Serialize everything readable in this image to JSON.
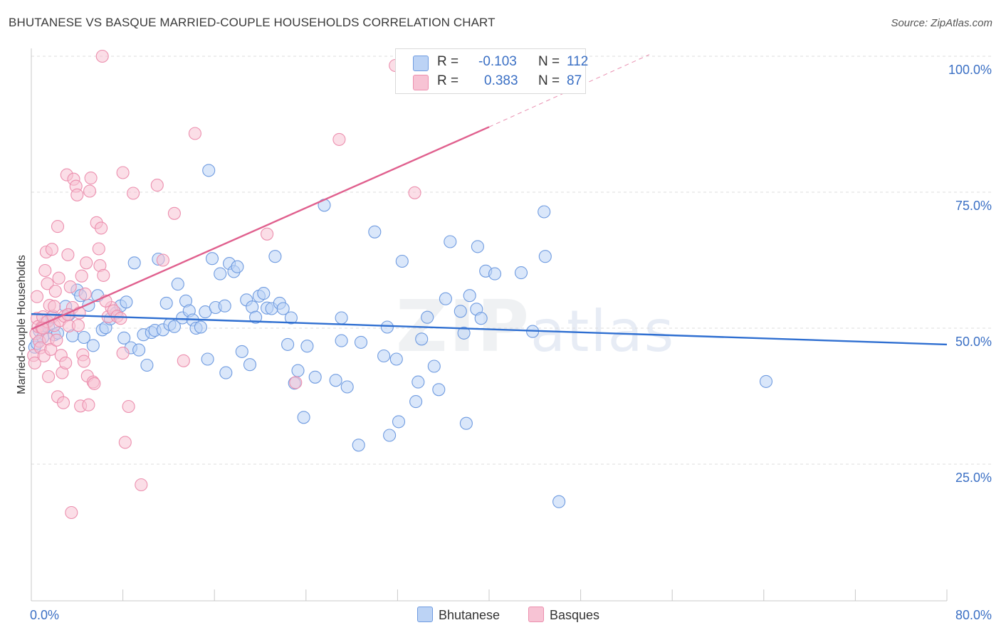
{
  "title": "BHUTANESE VS BASQUE MARRIED-COUPLE HOUSEHOLDS CORRELATION CHART",
  "source": "Source: ZipAtlas.com",
  "watermark": {
    "zip": "ZIP",
    "atlas": "atlas"
  },
  "legend": {
    "rows": [
      {
        "r_label": "R =",
        "r_value": "-0.103",
        "n_label": "N =",
        "n_value": "112"
      },
      {
        "r_label": "R =",
        "r_value": "0.383",
        "n_label": "N =",
        "n_value": "87"
      }
    ]
  },
  "bottom_legend": [
    "Bhutanese",
    "Basques"
  ],
  "colors": {
    "blue_fill": "#bcd3f5",
    "blue_stroke": "#6f9be0",
    "blue_line": "#2f6fd1",
    "pink_fill": "#f7c3d4",
    "pink_stroke": "#ec8fae",
    "pink_line": "#e0608e",
    "grid": "#dcdcdc",
    "tick_text": "#3a6fc4"
  },
  "chart_data": {
    "type": "scatter",
    "title": "BHUTANESE VS BASQUE MARRIED-COUPLE HOUSEHOLDS CORRELATION CHART",
    "xlabel": "",
    "ylabel": "Married-couple Households",
    "xlim": [
      0,
      80
    ],
    "ylim": [
      0,
      105
    ],
    "x_tick_labels": [
      "0.0%",
      "80.0%"
    ],
    "y_ticks": [
      25,
      50,
      75,
      100
    ],
    "y_tick_labels": [
      "25.0%",
      "50.0%",
      "75.0%",
      "100.0%"
    ],
    "grid": true,
    "legend_position": "top-center",
    "series": [
      {
        "name": "Bhutanese",
        "r": -0.103,
        "n": 112,
        "trend": {
          "x": [
            0,
            80
          ],
          "y": [
            52.6,
            47.0
          ]
        },
        "points": [
          [
            0.3,
            46.5
          ],
          [
            0.5,
            47.2
          ],
          [
            0.7,
            49.5
          ],
          [
            1.0,
            48.3
          ],
          [
            1.2,
            51.0
          ],
          [
            1.5,
            50.2
          ],
          [
            1.8,
            52.0
          ],
          [
            2.0,
            48.8
          ],
          [
            2.3,
            49.1
          ],
          [
            3.0,
            54.0
          ],
          [
            3.3,
            52.5
          ],
          [
            3.6,
            48.6
          ],
          [
            4.0,
            57.0
          ],
          [
            4.3,
            56.0
          ],
          [
            4.6,
            48.3
          ],
          [
            5.0,
            54.2
          ],
          [
            5.4,
            46.8
          ],
          [
            5.8,
            56.0
          ],
          [
            6.2,
            49.7
          ],
          [
            6.5,
            50.1
          ],
          [
            6.9,
            51.7
          ],
          [
            7.4,
            52.8
          ],
          [
            7.8,
            54.1
          ],
          [
            8.1,
            48.2
          ],
          [
            8.3,
            54.8
          ],
          [
            8.7,
            46.4
          ],
          [
            9.0,
            62.0
          ],
          [
            9.4,
            46.0
          ],
          [
            9.8,
            48.8
          ],
          [
            10.1,
            43.2
          ],
          [
            10.5,
            49.2
          ],
          [
            10.8,
            49.6
          ],
          [
            11.1,
            62.7
          ],
          [
            11.5,
            49.7
          ],
          [
            11.8,
            54.6
          ],
          [
            12.1,
            50.7
          ],
          [
            12.5,
            50.3
          ],
          [
            12.8,
            58.1
          ],
          [
            13.2,
            51.9
          ],
          [
            13.5,
            55.0
          ],
          [
            13.8,
            53.2
          ],
          [
            14.1,
            51.5
          ],
          [
            14.4,
            50.0
          ],
          [
            14.8,
            50.2
          ],
          [
            15.2,
            53.0
          ],
          [
            15.4,
            44.3
          ],
          [
            15.5,
            79.0
          ],
          [
            15.8,
            62.8
          ],
          [
            16.1,
            53.8
          ],
          [
            16.5,
            60.0
          ],
          [
            16.9,
            54.1
          ],
          [
            17.0,
            41.8
          ],
          [
            17.3,
            61.9
          ],
          [
            17.7,
            60.4
          ],
          [
            18.0,
            61.3
          ],
          [
            18.4,
            45.7
          ],
          [
            18.8,
            55.2
          ],
          [
            19.1,
            43.3
          ],
          [
            19.3,
            53.9
          ],
          [
            19.6,
            52.0
          ],
          [
            19.9,
            55.9
          ],
          [
            20.3,
            56.4
          ],
          [
            20.6,
            53.7
          ],
          [
            21.0,
            53.6
          ],
          [
            21.3,
            63.2
          ],
          [
            21.7,
            54.6
          ],
          [
            22.0,
            53.6
          ],
          [
            22.4,
            47.0
          ],
          [
            22.7,
            51.9
          ],
          [
            23.0,
            39.9
          ],
          [
            23.3,
            42.2
          ],
          [
            23.8,
            33.6
          ],
          [
            24.1,
            46.7
          ],
          [
            24.8,
            41.0
          ],
          [
            25.6,
            72.6
          ],
          [
            26.6,
            40.4
          ],
          [
            27.1,
            51.9
          ],
          [
            27.1,
            47.7
          ],
          [
            27.6,
            39.2
          ],
          [
            28.6,
            28.5
          ],
          [
            28.8,
            47.4
          ],
          [
            30.0,
            67.7
          ],
          [
            30.8,
            44.9
          ],
          [
            31.1,
            50.2
          ],
          [
            31.3,
            30.3
          ],
          [
            31.9,
            44.3
          ],
          [
            32.1,
            32.8
          ],
          [
            32.4,
            62.3
          ],
          [
            33.6,
            36.5
          ],
          [
            33.8,
            40.1
          ],
          [
            34.1,
            48.0
          ],
          [
            34.6,
            52.0
          ],
          [
            35.2,
            43.0
          ],
          [
            35.6,
            38.7
          ],
          [
            36.2,
            55.4
          ],
          [
            36.6,
            65.9
          ],
          [
            37.5,
            53.1
          ],
          [
            37.8,
            49.1
          ],
          [
            38.0,
            32.5
          ],
          [
            38.3,
            56.0
          ],
          [
            38.9,
            53.5
          ],
          [
            39.0,
            65.0
          ],
          [
            39.3,
            51.8
          ],
          [
            39.7,
            60.5
          ],
          [
            40.5,
            60.0
          ],
          [
            42.8,
            60.2
          ],
          [
            43.8,
            49.4
          ],
          [
            44.8,
            71.4
          ],
          [
            44.9,
            63.2
          ],
          [
            46.1,
            18.1
          ],
          [
            64.2,
            40.2
          ]
        ]
      },
      {
        "name": "Basques",
        "r": 0.383,
        "n": 87,
        "trend": {
          "x": [
            0,
            40
          ],
          "y": [
            49.8,
            87.0
          ]
        },
        "trend_dashed": {
          "x": [
            40,
            54
          ],
          "y": [
            87.0,
            100.3
          ]
        },
        "points": [
          [
            0.2,
            45.0
          ],
          [
            0.3,
            43.6
          ],
          [
            0.4,
            49.0
          ],
          [
            0.5,
            51.8
          ],
          [
            0.5,
            55.8
          ],
          [
            0.6,
            50.3
          ],
          [
            0.7,
            47.6
          ],
          [
            0.8,
            46.4
          ],
          [
            0.9,
            50.1
          ],
          [
            1.0,
            52.1
          ],
          [
            1.1,
            44.9
          ],
          [
            1.2,
            60.6
          ],
          [
            1.3,
            64.0
          ],
          [
            1.4,
            58.2
          ],
          [
            1.4,
            51.2
          ],
          [
            1.5,
            41.1
          ],
          [
            1.5,
            48.0
          ],
          [
            1.6,
            54.2
          ],
          [
            1.7,
            46.1
          ],
          [
            1.8,
            64.5
          ],
          [
            1.9,
            52.2
          ],
          [
            2.0,
            50.5
          ],
          [
            2.1,
            56.8
          ],
          [
            2.2,
            47.8
          ],
          [
            2.3,
            68.7
          ],
          [
            2.3,
            37.4
          ],
          [
            2.4,
            59.2
          ],
          [
            2.5,
            51.4
          ],
          [
            2.6,
            45.0
          ],
          [
            2.7,
            41.8
          ],
          [
            2.8,
            36.3
          ],
          [
            2.9,
            52.2
          ],
          [
            3.0,
            43.6
          ],
          [
            3.1,
            78.2
          ],
          [
            3.2,
            63.5
          ],
          [
            3.3,
            50.4
          ],
          [
            3.4,
            57.6
          ],
          [
            3.5,
            16.1
          ],
          [
            3.6,
            53.8
          ],
          [
            3.7,
            77.4
          ],
          [
            3.9,
            76.1
          ],
          [
            4.0,
            74.5
          ],
          [
            4.2,
            52.8
          ],
          [
            4.3,
            35.7
          ],
          [
            4.4,
            59.6
          ],
          [
            4.5,
            45.1
          ],
          [
            4.6,
            43.9
          ],
          [
            4.7,
            56.3
          ],
          [
            4.8,
            62.0
          ],
          [
            4.9,
            41.2
          ],
          [
            5.0,
            35.9
          ],
          [
            5.1,
            75.2
          ],
          [
            5.2,
            77.6
          ],
          [
            5.4,
            40.1
          ],
          [
            5.5,
            39.8
          ],
          [
            5.7,
            69.4
          ],
          [
            5.9,
            64.6
          ],
          [
            6.0,
            61.5
          ],
          [
            6.1,
            68.4
          ],
          [
            6.2,
            100.0
          ],
          [
            6.3,
            59.7
          ],
          [
            6.7,
            52.1
          ],
          [
            7.0,
            53.8
          ],
          [
            7.2,
            53.2
          ],
          [
            7.5,
            52.2
          ],
          [
            7.8,
            51.8
          ],
          [
            8.0,
            78.6
          ],
          [
            8.0,
            45.4
          ],
          [
            8.2,
            29.0
          ],
          [
            8.5,
            35.6
          ],
          [
            8.9,
            74.8
          ],
          [
            9.6,
            21.2
          ],
          [
            11.0,
            76.3
          ],
          [
            11.5,
            62.5
          ],
          [
            12.5,
            71.1
          ],
          [
            13.3,
            44.0
          ],
          [
            14.3,
            85.8
          ],
          [
            20.6,
            67.3
          ],
          [
            23.1,
            40.0
          ],
          [
            26.9,
            84.7
          ],
          [
            31.8,
            98.3
          ],
          [
            33.5,
            74.9
          ],
          [
            2.0,
            54.0
          ],
          [
            6.5,
            55.0
          ],
          [
            1.0,
            50.0
          ],
          [
            3.2,
            52.5
          ],
          [
            4.1,
            50.5
          ]
        ]
      }
    ]
  }
}
